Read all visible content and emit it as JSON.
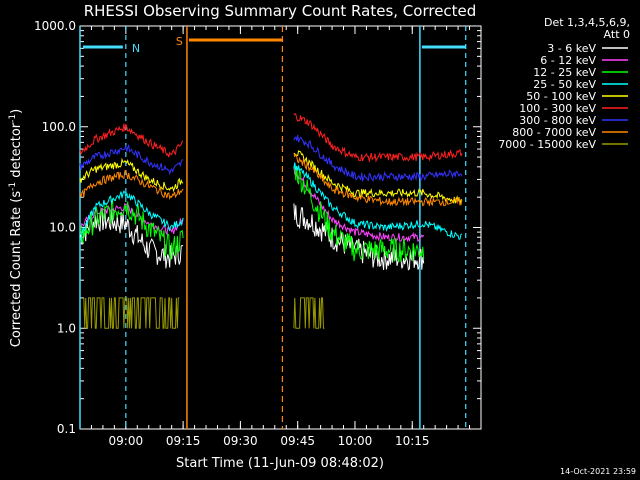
{
  "chart_data": {
    "type": "line",
    "title": "RHESSI Observing Summary Count Rates, Corrected",
    "xlabel": "Start Time (11-Jun-09 08:48:02)",
    "ylabel_main": "Corrected Count Rate (s",
    "ylabel_sup1": "-1",
    "ylabel_mid": " detector",
    "ylabel_sup2": "-1",
    "ylabel_end": ")",
    "yscale": "log",
    "ylim": [
      0.1,
      1000.0
    ],
    "xlim_min": [
      0,
      105
    ],
    "x_ticks_min": [
      12,
      27,
      42,
      57,
      72,
      87
    ],
    "x_tick_labels": [
      "09:00",
      "09:15",
      "09:30",
      "09:45",
      "10:00",
      "10:15"
    ],
    "y_ticks": [
      0.1,
      1.0,
      10.0,
      100.0,
      1000.0
    ],
    "y_tick_labels": [
      "0.1",
      "1.0",
      "10.0",
      "100.0",
      "1000.0"
    ],
    "legend_header": [
      "Det 1,3,4,5,6,9,",
      "Att 0"
    ],
    "series": [
      {
        "name": "3 - 6 keV",
        "color": "#ffffff",
        "seg1": [
          [
            0,
            8
          ],
          [
            4,
            12
          ],
          [
            12,
            11
          ],
          [
            18,
            6
          ],
          [
            24,
            5
          ],
          [
            27,
            6
          ]
        ],
        "seg2": [
          [
            56,
            14
          ],
          [
            60,
            12
          ],
          [
            66,
            8
          ],
          [
            72,
            6
          ],
          [
            78,
            5
          ],
          [
            90,
            5
          ]
        ]
      },
      {
        "name": "6 - 12 keV",
        "color": "#ff44ff",
        "seg1": [
          [
            0,
            10
          ],
          [
            4,
            14
          ],
          [
            12,
            16
          ],
          [
            18,
            11
          ],
          [
            24,
            9
          ],
          [
            27,
            12
          ]
        ],
        "seg2": [
          [
            56,
            38
          ],
          [
            60,
            24
          ],
          [
            66,
            12
          ],
          [
            72,
            9
          ],
          [
            80,
            8
          ],
          [
            90,
            8
          ]
        ]
      },
      {
        "name": "12 - 25 keV",
        "color": "#00ff00",
        "seg1": [
          [
            0,
            8
          ],
          [
            4,
            12
          ],
          [
            12,
            17
          ],
          [
            18,
            10
          ],
          [
            24,
            6
          ],
          [
            27,
            8
          ]
        ],
        "seg2": [
          [
            56,
            40
          ],
          [
            60,
            22
          ],
          [
            66,
            9
          ],
          [
            72,
            6
          ],
          [
            80,
            6
          ],
          [
            90,
            6
          ]
        ]
      },
      {
        "name": "25 - 50 keV",
        "color": "#00ffff",
        "seg1": [
          [
            0,
            8
          ],
          [
            4,
            16
          ],
          [
            12,
            22
          ],
          [
            18,
            14
          ],
          [
            24,
            10
          ],
          [
            27,
            12
          ]
        ],
        "seg2": [
          [
            56,
            42
          ],
          [
            60,
            30
          ],
          [
            66,
            16
          ],
          [
            72,
            11
          ],
          [
            80,
            10
          ],
          [
            90,
            11
          ],
          [
            100,
            8
          ]
        ]
      },
      {
        "name": "50 - 100 keV",
        "color": "#ffff00",
        "seg1": [
          [
            0,
            30
          ],
          [
            4,
            38
          ],
          [
            12,
            44
          ],
          [
            18,
            30
          ],
          [
            24,
            24
          ],
          [
            27,
            30
          ]
        ],
        "seg2": [
          [
            56,
            58
          ],
          [
            60,
            44
          ],
          [
            66,
            28
          ],
          [
            72,
            22
          ],
          [
            80,
            22
          ],
          [
            90,
            22
          ],
          [
            100,
            18
          ]
        ]
      },
      {
        "name": "100 - 300 keV",
        "color": "#ff2020",
        "seg1": [
          [
            0,
            55
          ],
          [
            4,
            75
          ],
          [
            12,
            100
          ],
          [
            18,
            70
          ],
          [
            24,
            52
          ],
          [
            27,
            70
          ]
        ],
        "seg2": [
          [
            56,
            130
          ],
          [
            60,
            110
          ],
          [
            66,
            65
          ],
          [
            72,
            50
          ],
          [
            80,
            50
          ],
          [
            90,
            50
          ],
          [
            100,
            55
          ]
        ]
      },
      {
        "name": "300 - 800 keV",
        "color": "#3333ff",
        "seg1": [
          [
            0,
            40
          ],
          [
            4,
            50
          ],
          [
            12,
            62
          ],
          [
            18,
            45
          ],
          [
            24,
            36
          ],
          [
            27,
            45
          ]
        ],
        "seg2": [
          [
            56,
            80
          ],
          [
            60,
            68
          ],
          [
            66,
            42
          ],
          [
            72,
            32
          ],
          [
            80,
            32
          ],
          [
            90,
            32
          ],
          [
            100,
            35
          ]
        ]
      },
      {
        "name": "800 - 7000 keV",
        "color": "#ff8800",
        "seg1": [
          [
            0,
            20
          ],
          [
            4,
            28
          ],
          [
            12,
            34
          ],
          [
            18,
            26
          ],
          [
            24,
            20
          ],
          [
            27,
            24
          ]
        ],
        "seg2": [
          [
            56,
            50
          ],
          [
            60,
            40
          ],
          [
            66,
            24
          ],
          [
            72,
            20
          ],
          [
            80,
            18
          ],
          [
            90,
            18
          ],
          [
            100,
            18
          ]
        ]
      },
      {
        "name": "7000 - 15000 keV",
        "color": "#999900",
        "seg1": [
          [
            1,
            1
          ],
          [
            4,
            2
          ],
          [
            12,
            1
          ],
          [
            18,
            1
          ],
          [
            26,
            1
          ]
        ],
        "seg2": [
          [
            56,
            2
          ],
          [
            60,
            1
          ],
          [
            64,
            1
          ]
        ]
      }
    ],
    "annotations": {
      "N": {
        "label": "N",
        "color": "#44ddff",
        "x_start": 0,
        "x_end": 12,
        "x_end2": 89,
        "x_end3": 101
      },
      "S": {
        "label": "S",
        "color": "#ff8800",
        "x_start": 28,
        "x_end": 53
      }
    },
    "footer_date": "14-Oct-2021 23:59"
  }
}
